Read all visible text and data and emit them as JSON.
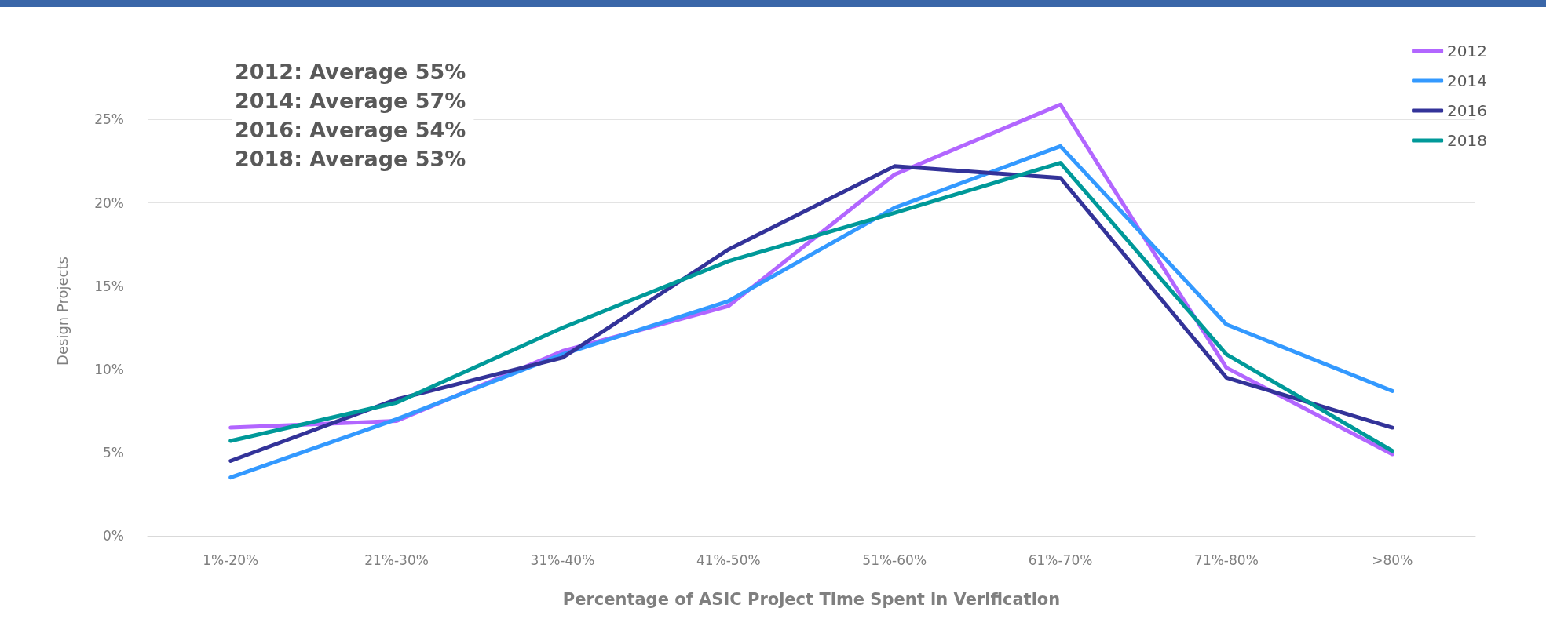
{
  "chart_data": {
    "type": "line",
    "xlabel": "Percentage of ASIC Project Time Spent in Verification",
    "ylabel": "Design Projects",
    "categories": [
      "1%-20%",
      "21%-30%",
      "31%-40%",
      "41%-50%",
      "51%-60%",
      "61%-70%",
      "71%-80%",
      ">80%"
    ],
    "series": [
      {
        "name": "2012",
        "color": "#b266ff",
        "values": [
          6.5,
          6.9,
          11.1,
          13.8,
          21.7,
          25.9,
          10.1,
          4.9
        ]
      },
      {
        "name": "2014",
        "color": "#3399ff",
        "values": [
          3.5,
          7.0,
          10.9,
          14.1,
          19.7,
          23.4,
          12.7,
          8.7
        ]
      },
      {
        "name": "2016",
        "color": "#333399",
        "values": [
          4.5,
          8.2,
          10.7,
          17.2,
          22.2,
          21.5,
          9.5,
          6.5
        ]
      },
      {
        "name": "2018",
        "color": "#009999",
        "values": [
          5.7,
          8.0,
          12.5,
          16.5,
          19.4,
          22.4,
          10.9,
          5.1
        ]
      }
    ],
    "ylim": [
      0,
      27
    ],
    "yticks": [
      {
        "value": 0,
        "label": "0%"
      },
      {
        "value": 5,
        "label": "5%"
      },
      {
        "value": 10,
        "label": "10%"
      },
      {
        "value": 15,
        "label": "15%"
      },
      {
        "value": 20,
        "label": "20%"
      },
      {
        "value": 25,
        "label": "25%"
      }
    ],
    "annotations": [
      "2012: Average 55%",
      "2014: Average 57%",
      "2016: Average 54%",
      "2018: Average 53%"
    ],
    "grid": "y",
    "legend": "top right",
    "marker": "none",
    "line_style": "solid"
  }
}
